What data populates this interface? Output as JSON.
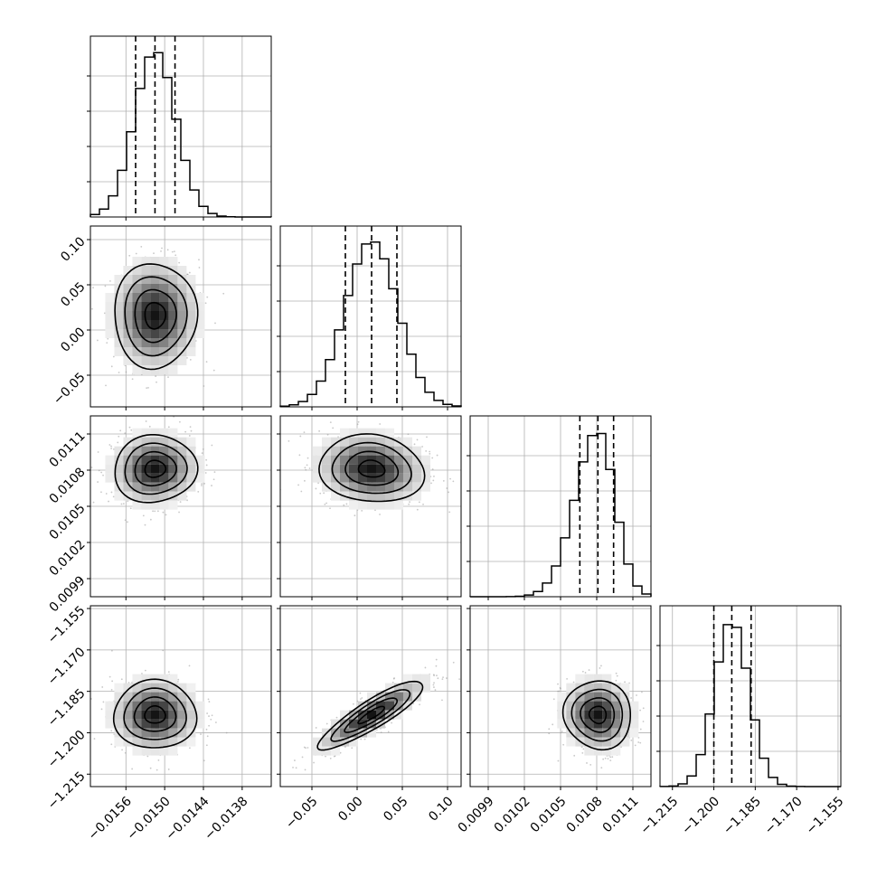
{
  "chart_data": {
    "type": "corner",
    "parameters": [
      {
        "range": [
          -0.01615,
          -0.01335
        ],
        "ticks": [
          -0.0156,
          -0.015,
          -0.0144,
          -0.0138
        ],
        "tick_labels": [
          "−0.0156",
          "−0.0150",
          "−0.0144",
          "−0.0138"
        ],
        "mean": -0.01515,
        "sigma": 0.00032,
        "quantiles": [
          -0.01545,
          -0.01515,
          -0.01484
        ],
        "hist_max": 1.0
      },
      {
        "range": [
          -0.085,
          0.115
        ],
        "ticks": [
          -0.05,
          0.0,
          0.05,
          0.1
        ],
        "tick_labels": [
          "−0.05",
          "0.00",
          "0.05",
          "0.10"
        ],
        "mean": 0.016,
        "sigma": 0.029,
        "quantiles": [
          -0.013,
          0.016,
          0.044
        ],
        "hist_max": 1.0
      },
      {
        "range": [
          0.00975,
          0.01125
        ],
        "ticks": [
          0.0099,
          0.0102,
          0.0105,
          0.0108,
          0.0111
        ],
        "tick_labels": [
          "0.0099",
          "0.0102",
          "0.0105",
          "0.0108",
          "0.0111"
        ],
        "mean": 0.01081,
        "sigma": 0.00014,
        "quantiles": [
          0.01066,
          0.01081,
          0.01094
        ],
        "hist_max": 1.0
      },
      {
        "range": [
          -1.2195,
          -1.154
        ],
        "ticks": [
          -1.215,
          -1.2,
          -1.185,
          -1.17,
          -1.155
        ],
        "tick_labels": [
          "−1.215",
          "−1.200",
          "−1.185",
          "−1.170",
          "−1.155"
        ],
        "mean": -1.1935,
        "sigma": 0.0062,
        "quantiles": [
          -1.2,
          -1.1935,
          -1.1865
        ],
        "hist_max": 1.0
      }
    ],
    "pairs": [
      {
        "x": 0,
        "y": 1,
        "correlation": 0.0
      },
      {
        "x": 0,
        "y": 2,
        "correlation": 0.05
      },
      {
        "x": 1,
        "y": 2,
        "correlation": -0.1
      },
      {
        "x": 0,
        "y": 3,
        "correlation": 0.0
      },
      {
        "x": 1,
        "y": 3,
        "correlation": 0.88
      },
      {
        "x": 2,
        "y": 3,
        "correlation": -0.05
      }
    ],
    "histogram_style": "step",
    "quantile_style": "dashed",
    "contour_levels": 3,
    "grid": true,
    "colors": {
      "line": "#000000",
      "grid": "#b0b0b0",
      "points": "#9a9a9a"
    }
  }
}
